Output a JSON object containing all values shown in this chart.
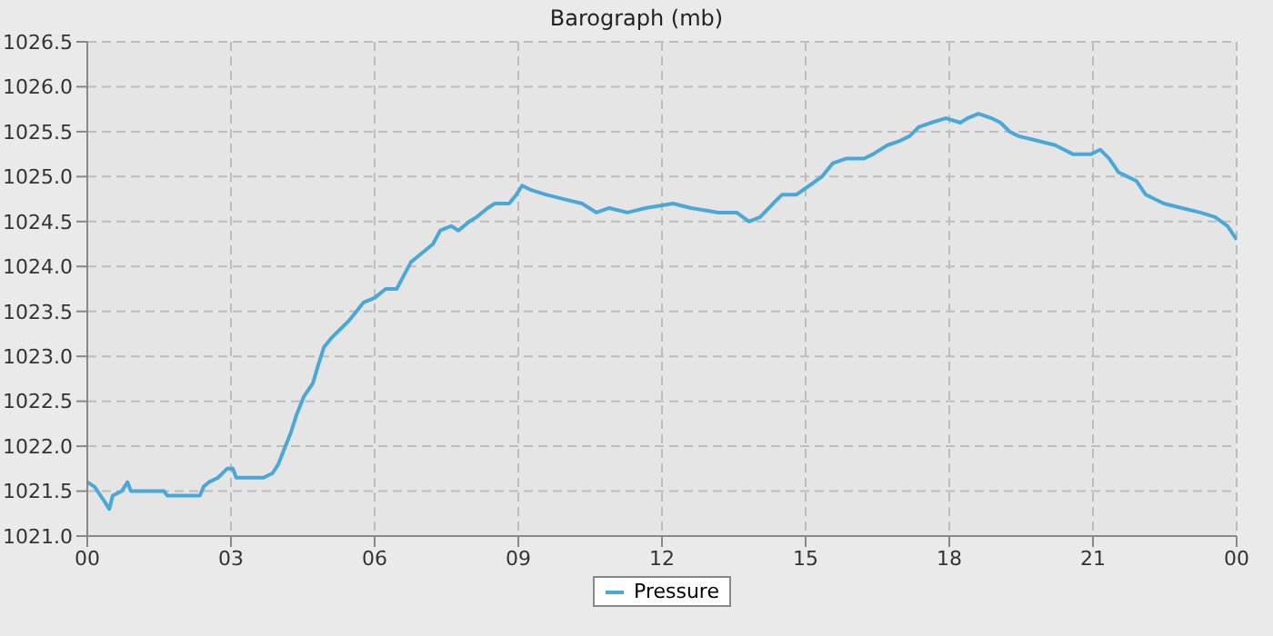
{
  "chart_data": {
    "type": "line",
    "title": "Barograph (mb)",
    "x": [
      0,
      0.15,
      0.34,
      0.46,
      0.53,
      0.72,
      0.84,
      0.91,
      1.22,
      1.6,
      1.67,
      1.97,
      2.35,
      2.43,
      2.54,
      2.73,
      2.92,
      3.04,
      3.11,
      3.68,
      3.87,
      3.99,
      4.1,
      4.25,
      4.37,
      4.52,
      4.71,
      4.82,
      4.94,
      5.09,
      5.28,
      5.47,
      5.62,
      5.77,
      6.0,
      6.23,
      6.46,
      6.61,
      6.76,
      6.99,
      7.22,
      7.37,
      7.6,
      7.75,
      7.98,
      8.13,
      8.36,
      8.51,
      8.81,
      8.96,
      9.08,
      9.27,
      9.57,
      9.95,
      10.33,
      10.63,
      10.9,
      11.28,
      11.66,
      12.23,
      12.61,
      13.18,
      13.56,
      13.82,
      14.05,
      14.32,
      14.51,
      14.81,
      15.08,
      15.34,
      15.57,
      15.84,
      16.22,
      16.41,
      16.71,
      16.98,
      17.17,
      17.36,
      17.62,
      17.93,
      18.23,
      18.38,
      18.61,
      18.88,
      19.07,
      19.26,
      19.45,
      19.83,
      20.21,
      20.58,
      20.96,
      21.15,
      21.34,
      21.53,
      21.72,
      21.91,
      22.1,
      22.48,
      22.86,
      23.24,
      23.55,
      23.81,
      24
    ],
    "series": [
      {
        "name": "Pressure",
        "color": "#4aa8d8",
        "values": [
          1021.6,
          1021.55,
          1021.4,
          1021.3,
          1021.45,
          1021.5,
          1021.6,
          1021.5,
          1021.5,
          1021.5,
          1021.45,
          1021.45,
          1021.45,
          1021.55,
          1021.6,
          1021.65,
          1021.75,
          1021.75,
          1021.65,
          1021.65,
          1021.7,
          1021.8,
          1021.95,
          1022.15,
          1022.35,
          1022.55,
          1022.7,
          1022.9,
          1023.1,
          1023.2,
          1023.3,
          1023.4,
          1023.5,
          1023.6,
          1023.65,
          1023.75,
          1023.75,
          1023.9,
          1024.05,
          1024.15,
          1024.25,
          1024.4,
          1024.45,
          1024.4,
          1024.5,
          1024.55,
          1024.65,
          1024.7,
          1024.7,
          1024.8,
          1024.9,
          1024.85,
          1024.8,
          1024.75,
          1024.7,
          1024.6,
          1024.65,
          1024.6,
          1024.65,
          1024.7,
          1024.65,
          1024.6,
          1024.6,
          1024.5,
          1024.55,
          1024.7,
          1024.8,
          1024.8,
          1024.9,
          1025.0,
          1025.15,
          1025.2,
          1025.2,
          1025.25,
          1025.35,
          1025.4,
          1025.45,
          1025.55,
          1025.6,
          1025.65,
          1025.6,
          1025.65,
          1025.7,
          1025.65,
          1025.6,
          1025.5,
          1025.45,
          1025.4,
          1025.35,
          1025.25,
          1025.25,
          1025.3,
          1025.2,
          1025.05,
          1025.0,
          1024.95,
          1024.8,
          1024.7,
          1024.65,
          1024.6,
          1024.55,
          1024.45,
          1024.3
        ]
      }
    ],
    "xlim": [
      0,
      24
    ],
    "xticks": [
      {
        "value": 0,
        "label": "00"
      },
      {
        "value": 3,
        "label": "03"
      },
      {
        "value": 6,
        "label": "06"
      },
      {
        "value": 9,
        "label": "09"
      },
      {
        "value": 12,
        "label": "12"
      },
      {
        "value": 15,
        "label": "15"
      },
      {
        "value": 18,
        "label": "18"
      },
      {
        "value": 21,
        "label": "21"
      },
      {
        "value": 24,
        "label": "00"
      }
    ],
    "ylim": [
      1021.0,
      1026.5
    ],
    "yticks": [
      {
        "value": 1021.0,
        "label": "1021.0"
      },
      {
        "value": 1021.5,
        "label": "1021.5"
      },
      {
        "value": 1022.0,
        "label": "1022.0"
      },
      {
        "value": 1022.5,
        "label": "1022.5"
      },
      {
        "value": 1023.0,
        "label": "1023.0"
      },
      {
        "value": 1023.5,
        "label": "1023.5"
      },
      {
        "value": 1024.0,
        "label": "1024.0"
      },
      {
        "value": 1024.5,
        "label": "1024.5"
      },
      {
        "value": 1025.0,
        "label": "1025.0"
      },
      {
        "value": 1025.5,
        "label": "1025.5"
      },
      {
        "value": 1026.0,
        "label": "1026.0"
      },
      {
        "value": 1026.5,
        "label": "1026.5"
      }
    ],
    "grid": true,
    "legend": "bottom",
    "marker": "none",
    "line_style": "solid"
  }
}
